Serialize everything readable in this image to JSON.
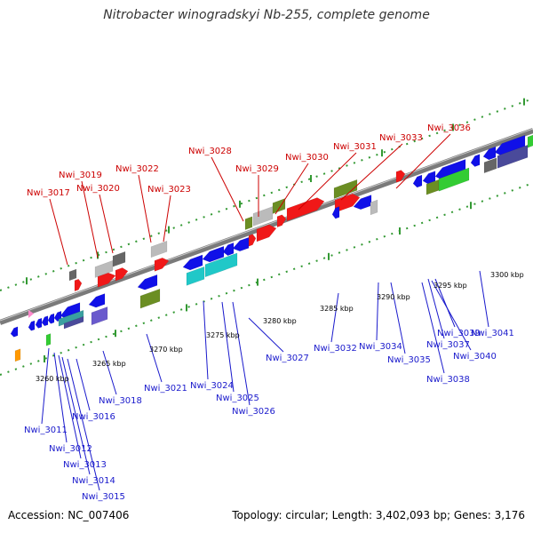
{
  "title": "Nitrobacter winogradskyi Nb-255, complete genome",
  "accession": "Accession: NC_007406",
  "summary": "Topology: circular; Length: 3,402,093 bp; Genes: 3,176",
  "colors": {
    "forward_label": "#cc0000",
    "reverse_label": "#1a1acc"
  },
  "positions": [
    "3260 kbp",
    "3265 kbp",
    "3270 kbp",
    "3275 kbp",
    "3280 kbp",
    "3285 kbp",
    "3290 kbp",
    "3295 kbp",
    "3300 kbp"
  ],
  "forward_genes": [
    "Nwi_3017",
    "Nwi_3019",
    "Nwi_3020",
    "Nwi_3022",
    "Nwi_3023",
    "Nwi_3028",
    "Nwi_3029",
    "Nwi_3030",
    "Nwi_3031",
    "Nwi_3033",
    "Nwi_3036"
  ],
  "reverse_genes": [
    "Nwi_3011",
    "Nwi_3012",
    "Nwi_3013",
    "Nwi_3014",
    "Nwi_3015",
    "Nwi_3016",
    "Nwi_3018",
    "Nwi_3021",
    "Nwi_3024",
    "Nwi_3025",
    "Nwi_3026",
    "Nwi_3027",
    "Nwi_3032",
    "Nwi_3034",
    "Nwi_3035",
    "Nwi_3037",
    "Nwi_3038",
    "Nwi_3039",
    "Nwi_3040",
    "Nwi_3041"
  ]
}
